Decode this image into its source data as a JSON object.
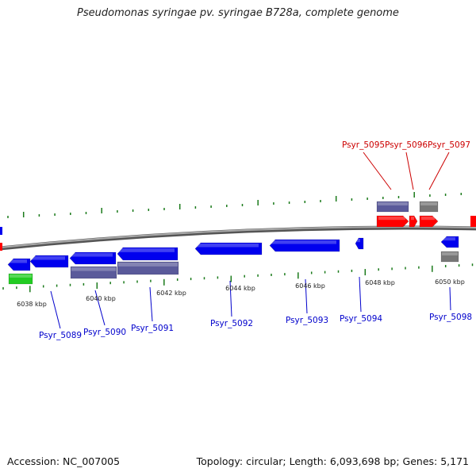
{
  "title": "Pseudomonas syringae pv. syringae B728a, complete genome",
  "footer": {
    "accession": "Accession: NC_007005",
    "summary": "Topology: circular; Length: 6,093,698 bp; Genes: 5,171"
  },
  "colors": {
    "forward_cds": "#ff0000",
    "reverse_cds": "#0000ee",
    "rna": "#22cc22",
    "feature_purple": "#5a5a9a",
    "feature_gray": "#777777",
    "backbone": "#888888",
    "ticks": "#1a7a1a",
    "forward_label": "#cc0000",
    "reverse_label": "#0000cc"
  },
  "ticks": [
    {
      "label": "6038 kbp"
    },
    {
      "label": "6040 kbp"
    },
    {
      "label": "6042 kbp"
    },
    {
      "label": "6044 kbp"
    },
    {
      "label": "6046 kbp"
    },
    {
      "label": "6048 kbp"
    },
    {
      "label": "6050 kbp"
    }
  ],
  "gene_labels": [
    {
      "text": "Psyr_5089",
      "strand": "reverse"
    },
    {
      "text": "Psyr_5090",
      "strand": "reverse"
    },
    {
      "text": "Psyr_5091",
      "strand": "reverse"
    },
    {
      "text": "Psyr_5092",
      "strand": "reverse"
    },
    {
      "text": "Psyr_5093",
      "strand": "reverse"
    },
    {
      "text": "Psyr_5094",
      "strand": "reverse"
    },
    {
      "text": "Psyr_5095",
      "strand": "forward"
    },
    {
      "text": "Psyr_5096",
      "strand": "forward"
    },
    {
      "text": "Psyr_5097",
      "strand": "forward"
    },
    {
      "text": "Psyr_5098",
      "strand": "reverse"
    }
  ]
}
